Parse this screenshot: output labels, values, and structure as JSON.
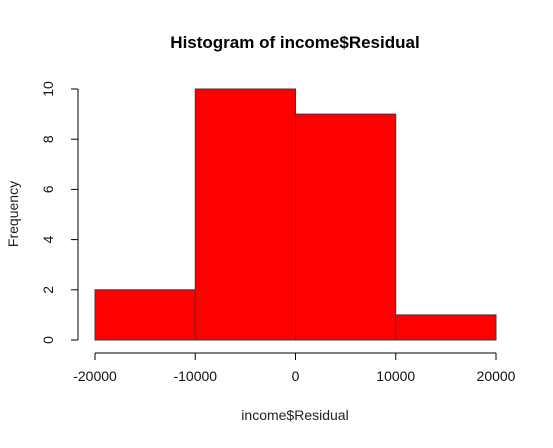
{
  "chart_data": {
    "type": "bar",
    "subtype": "histogram",
    "title": "Histogram of income$Residual",
    "xlabel": "income$Residual",
    "ylabel": "Frequency",
    "bins": [
      {
        "start": -20000,
        "end": -10000,
        "count": 2
      },
      {
        "start": -10000,
        "end": 0,
        "count": 10
      },
      {
        "start": 0,
        "end": 10000,
        "count": 9
      },
      {
        "start": 10000,
        "end": 20000,
        "count": 1
      }
    ],
    "x_ticks": [
      -20000,
      -10000,
      0,
      10000,
      20000
    ],
    "x_tick_labels": [
      "-20000",
      "-10000",
      "0",
      "10000",
      "20000"
    ],
    "y_ticks": [
      0,
      2,
      4,
      6,
      8,
      10
    ],
    "y_tick_labels": [
      "0",
      "2",
      "4",
      "6",
      "8",
      "10"
    ],
    "xlim": [
      -20000,
      20000
    ],
    "ylim": [
      0,
      10
    ],
    "bar_color": "#ff0000",
    "grid": false,
    "legend": "none"
  }
}
